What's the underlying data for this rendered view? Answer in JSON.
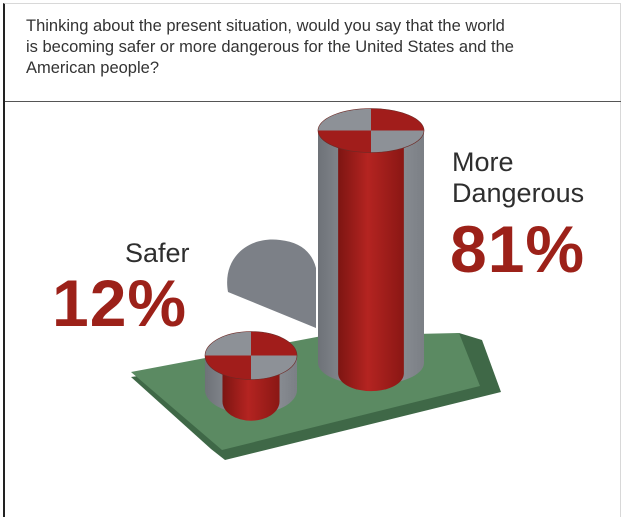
{
  "question": {
    "lines": [
      "Thinking about the present situation, would you say that the world",
      "is becoming safer or more dangerous for the United States and the",
      "American people?"
    ]
  },
  "chart_data": {
    "type": "bar",
    "categories": [
      "Safer",
      "More Dangerous"
    ],
    "values": [
      12,
      81
    ],
    "value_labels": [
      "12%",
      "81%"
    ],
    "category_label_lines": [
      [
        "Safer"
      ],
      [
        "More",
        "Dangerous"
      ]
    ],
    "ylim": [
      0,
      100
    ],
    "grid": false,
    "legend": "none"
  },
  "colors": {
    "accent_red": "#9c2119",
    "cylinder_red": "#a11d1b",
    "cylinder_gray": "#8d9197",
    "base_green": "#5b8a62",
    "shadow_gray": "#7c8087",
    "label_text": "#2e2e2e",
    "question_text": "#333333"
  }
}
